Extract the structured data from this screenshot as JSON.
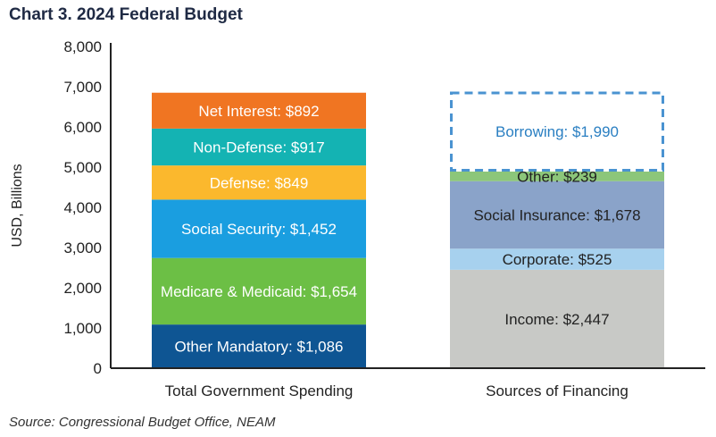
{
  "title": "Chart 3. 2024 Federal Budget",
  "source": "Source: Congressional Budget Office, NEAM",
  "chart_data": {
    "type": "bar",
    "stacked": true,
    "ylabel": "USD, Billions",
    "ylim": [
      0,
      8000
    ],
    "yticks": [
      "0",
      "1,000",
      "2,000",
      "3,000",
      "4,000",
      "5,000",
      "6,000",
      "7,000",
      "8,000"
    ],
    "grid": false,
    "legend": "none",
    "categories": [
      "Total Government Spending",
      "Sources of Financing"
    ],
    "stacks": [
      {
        "category": "Total Government Spending",
        "segments": [
          {
            "name": "Other Mandatory",
            "value": 1086,
            "label": "Other Mandatory: $1,086",
            "color": "#0e5593",
            "text_color": "#ffffff"
          },
          {
            "name": "Medicare & Medicaid",
            "value": 1654,
            "label": "Medicare & Medicaid: $1,654",
            "color": "#6cbf45",
            "text_color": "#ffffff"
          },
          {
            "name": "Social Security",
            "value": 1452,
            "label": "Social Security: $1,452",
            "color": "#1a9ee0",
            "text_color": "#ffffff"
          },
          {
            "name": "Defense",
            "value": 849,
            "label": "Defense: $849",
            "color": "#fbb82d",
            "text_color": "#ffffff"
          },
          {
            "name": "Non-Defense",
            "value": 917,
            "label": "Non-Defense: $917",
            "color": "#14b3b3",
            "text_color": "#ffffff"
          },
          {
            "name": "Net Interest",
            "value": 892,
            "label": "Net Interest: $892",
            "color": "#f07522",
            "text_color": "#ffffff"
          }
        ]
      },
      {
        "category": "Sources of Financing",
        "segments": [
          {
            "name": "Income",
            "value": 2447,
            "label": "Income: $2,447",
            "color": "#c8c9c6",
            "text_color": "#222222"
          },
          {
            "name": "Corporate",
            "value": 525,
            "label": "Corporate: $525",
            "color": "#a7d1ee",
            "text_color": "#222222"
          },
          {
            "name": "Social Insurance",
            "value": 1678,
            "label": "Social Insurance: $1,678",
            "color": "#8aa3c9",
            "text_color": "#222222"
          },
          {
            "name": "Other",
            "value": 239,
            "label": "Other: $239",
            "color": "#8cc67a",
            "text_color": "#222222"
          },
          {
            "name": "Borrowing",
            "value": 1990,
            "label": "Borrowing: $1,990",
            "color": "#ffffff",
            "text_color": "#2a7fc2",
            "dashed": true,
            "border_color": "#4a93d1"
          }
        ]
      }
    ]
  }
}
